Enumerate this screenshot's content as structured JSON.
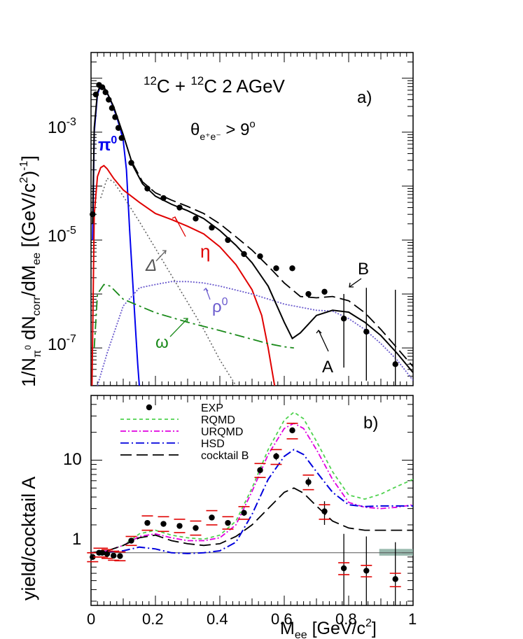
{
  "panel_a": {
    "title_pre": "12",
    "title_mid": "C + ",
    "title_pre2": "12",
    "title_post": "C  2 AGeV",
    "label": "a)",
    "cut_theta": "θ",
    "cut_sub": "e⁺e⁻",
    "cut_rel": " > 9",
    "cut_sup": "o",
    "ylabel_a": "1/N",
    "ylabel_sub1": "π",
    "ylabel_sup1": "0",
    "ylabel_b": " dN",
    "ylabel_sub2": "corr",
    "ylabel_c": "/dM",
    "ylabel_sub3": "ee",
    "ylabel_d": "  [(GeV/c",
    "ylabel_sup2": "2",
    "ylabel_e": ")",
    "ylabel_sup3": "-1",
    "ylabel_f": "]",
    "ytick_base": "10",
    "ytick_exps": [
      "-3",
      "-5",
      "-7"
    ],
    "annotations": {
      "pi0": "π",
      "pi0_sup": "0",
      "eta": "η",
      "delta": "Δ",
      "rho0": "ρ",
      "rho0_sup": "0",
      "omega": "ω",
      "A": "A",
      "B": "B"
    },
    "colors": {
      "pi0": "#0000ee",
      "eta": "#e00000",
      "delta": "#666666",
      "rho0": "#6a5acd",
      "omega": "#1a8a1a",
      "data": "#000000"
    }
  },
  "panel_b": {
    "ylabel": "yield/cocktail A",
    "label": "b)",
    "yticks": [
      "1",
      "10"
    ],
    "xticks": [
      "0",
      "0.2",
      "0.4",
      "0.6",
      "0.8",
      "1"
    ],
    "xlabel_main": "M",
    "xlabel_sub": "ee",
    "xlabel_rest": " [GeV/c",
    "xlabel_sup": "2",
    "xlabel_end": "]",
    "legend": [
      {
        "label": "EXP",
        "color": "#000000"
      },
      {
        "label": "RQMD",
        "color": "#4fd24f"
      },
      {
        "label": "URQMD",
        "color": "#e000e0"
      },
      {
        "label": "HSD",
        "color": "#0000dd"
      },
      {
        "label": "cocktail B",
        "color": "#000000"
      }
    ],
    "colors": {
      "syserr": "#e00000",
      "band": "#7fa89a"
    }
  },
  "chart_data": [
    {
      "type": "line",
      "panel": "a",
      "yscale": "log",
      "xlim": [
        0,
        1
      ],
      "ylim": [
        2e-08,
        0.03
      ],
      "title": "12C + 12C  2 AGeV",
      "ylabel": "1/Nπ0 dNcorr/dMee  [(GeV/c2)-1]",
      "annotation": "θe+e- > 9o",
      "series": [
        {
          "name": "data",
          "x": [
            0.005,
            0.015,
            0.025,
            0.035,
            0.045,
            0.055,
            0.065,
            0.075,
            0.085,
            0.095,
            0.125,
            0.175,
            0.225,
            0.275,
            0.325,
            0.375,
            0.425,
            0.475,
            0.525,
            0.575,
            0.625,
            0.675,
            0.725,
            0.785,
            0.855,
            0.945
          ],
          "y": [
            3e-05,
            0.005,
            0.0075,
            0.0068,
            0.0055,
            0.004,
            0.0028,
            0.0019,
            0.0012,
            0.00078,
            0.00027,
            9e-05,
            6e-05,
            4e-05,
            2.5e-05,
            1.7e-05,
            1e-05,
            5.5e-06,
            5e-06,
            3e-06,
            3e-06,
            1e-06,
            1.1e-06,
            3.5e-07,
            2e-07,
            5e-08
          ],
          "yerr_high": [
            0,
            0,
            0,
            0,
            0,
            0,
            0,
            0,
            0,
            0,
            0,
            0,
            0,
            0,
            0,
            0,
            0,
            0,
            0,
            0,
            0,
            0,
            0,
            1e-06,
            1.3e-06,
            1.2e-06
          ]
        },
        {
          "name": "π0",
          "x": [
            0.005,
            0.01,
            0.02,
            0.03,
            0.04,
            0.05,
            0.06,
            0.07,
            0.08,
            0.09,
            0.1,
            0.11,
            0.12,
            0.13,
            0.14,
            0.145,
            0.15
          ],
          "y": [
            1e-05,
            0.001,
            0.005,
            0.0075,
            0.0068,
            0.0053,
            0.004,
            0.0028,
            0.0019,
            0.0012,
            0.0007,
            0.0002,
            1.5e-05,
            1.5e-06,
            1.5e-07,
            5e-08,
            2e-08
          ]
        },
        {
          "name": "η",
          "x": [
            0.003,
            0.01,
            0.02,
            0.03,
            0.04,
            0.05,
            0.07,
            0.1,
            0.15,
            0.2,
            0.25,
            0.3,
            0.35,
            0.4,
            0.45,
            0.5,
            0.53,
            0.55,
            0.57
          ],
          "y": [
            2e-08,
            3e-05,
            0.00015,
            0.00022,
            0.00024,
            0.00021,
            0.00014,
            8.5e-05,
            5e-05,
            3.1e-05,
            2.4e-05,
            1.8e-05,
            1.3e-05,
            7.5e-06,
            3.5e-06,
            1.2e-06,
            4e-07,
            1e-07,
            2e-08
          ]
        },
        {
          "name": "Δ",
          "x": [
            0.03,
            0.05,
            0.07,
            0.1,
            0.15,
            0.2,
            0.25,
            0.3,
            0.35,
            0.4,
            0.45
          ],
          "y": [
            6e-05,
            0.00014,
            0.00012,
            6.5e-05,
            2.2e-05,
            7e-06,
            2.2e-06,
            7e-07,
            2.2e-07,
            6e-08,
            2e-08
          ]
        },
        {
          "name": "ρ0",
          "x": [
            0.02,
            0.05,
            0.1,
            0.15,
            0.2,
            0.25,
            0.3,
            0.35,
            0.4,
            0.5,
            0.6,
            0.7,
            0.75,
            0.8,
            0.85,
            0.9,
            0.95,
            1.0
          ],
          "y": [
            2e-08,
            8e-08,
            6e-07,
            1.3e-06,
            1.5e-06,
            1.7e-06,
            1.7e-06,
            1.6e-06,
            1.4e-06,
            1e-06,
            6.5e-07,
            5e-07,
            4.8e-07,
            3.5e-07,
            2.2e-07,
            1.2e-07,
            6e-08,
            2.5e-08
          ]
        },
        {
          "name": "ω",
          "x": [
            0.01,
            0.02,
            0.04,
            0.06,
            0.1,
            0.2,
            0.3,
            0.4,
            0.5,
            0.55,
            0.6,
            0.63
          ],
          "y": [
            1e-07,
            1e-06,
            1.5e-06,
            1.4e-06,
            8e-07,
            4.5e-07,
            3e-07,
            2.1e-07,
            1.45e-07,
            1.2e-07,
            1.05e-07,
            1e-07
          ]
        },
        {
          "name": "A",
          "x": [
            0.005,
            0.01,
            0.02,
            0.03,
            0.04,
            0.05,
            0.07,
            0.1,
            0.13,
            0.16,
            0.2,
            0.25,
            0.3,
            0.35,
            0.4,
            0.45,
            0.5,
            0.55,
            0.6,
            0.625,
            0.65,
            0.7,
            0.75,
            0.8,
            0.85,
            0.9,
            0.95,
            1.0
          ],
          "y": [
            2e-05,
            0.0012,
            0.0055,
            0.0075,
            0.0069,
            0.0054,
            0.003,
            0.0009,
            0.00024,
            0.00011,
            6.5e-05,
            4.6e-05,
            3.5e-05,
            2.5e-05,
            1.5e-05,
            8e-06,
            3.8e-06,
            1.4e-06,
            3e-07,
            1.5e-07,
            1.9e-07,
            4e-07,
            5e-07,
            4.6e-07,
            3e-07,
            1.7e-07,
            8e-08,
            3.5e-08
          ]
        },
        {
          "name": "B",
          "x": [
            0.13,
            0.16,
            0.2,
            0.25,
            0.3,
            0.35,
            0.4,
            0.45,
            0.5,
            0.55,
            0.6,
            0.65,
            0.7,
            0.75,
            0.8,
            0.85,
            0.9,
            0.95,
            1.0
          ],
          "y": [
            0.00026,
            0.00012,
            7.5e-05,
            5.5e-05,
            4.2e-05,
            3.1e-05,
            2e-05,
            1.15e-05,
            6.5e-06,
            3.3e-06,
            1.6e-06,
            9e-07,
            8.5e-07,
            9e-07,
            7.5e-07,
            4.5e-07,
            2.2e-07,
            1e-07,
            4.5e-08
          ]
        }
      ]
    },
    {
      "type": "line",
      "panel": "b",
      "yscale": "log",
      "xlim": [
        0,
        1
      ],
      "ylim": [
        0.27,
        50
      ],
      "ylabel": "yield/cocktail A",
      "xlabel": "Mee [GeV/c2]",
      "series": [
        {
          "name": "EXP",
          "x": [
            0.005,
            0.025,
            0.035,
            0.05,
            0.07,
            0.09,
            0.125,
            0.175,
            0.225,
            0.275,
            0.325,
            0.375,
            0.425,
            0.475,
            0.525,
            0.575,
            0.625,
            0.675,
            0.725,
            0.785,
            0.855,
            0.945
          ],
          "y": [
            0.9,
            1.0,
            1.0,
            0.97,
            0.93,
            0.92,
            1.35,
            2.1,
            2.05,
            1.95,
            1.85,
            2.4,
            2.1,
            2.7,
            7.8,
            11,
            21,
            5.8,
            2.8,
            0.68,
            0.64,
            0.52
          ],
          "sys_low": [
            0.8,
            0.9,
            0.9,
            0.87,
            0.83,
            0.82,
            1.2,
            1.75,
            1.7,
            1.65,
            1.55,
            2.0,
            1.8,
            2.3,
            6.5,
            9,
            17,
            4.8,
            2.3,
            0.58,
            0.55,
            0.43
          ],
          "sys_high": [
            1.0,
            1.12,
            1.12,
            1.08,
            1.04,
            1.02,
            1.5,
            2.5,
            2.45,
            2.3,
            2.2,
            2.85,
            2.45,
            3.15,
            9.2,
            13,
            25,
            6.9,
            3.3,
            0.78,
            0.73,
            0.6
          ],
          "stat_low": [
            0.86,
            0.96,
            0.96,
            0.94,
            0.9,
            0.9,
            1.3,
            2.0,
            1.95,
            1.85,
            1.76,
            2.3,
            2.0,
            2.5,
            7.2,
            10,
            19.5,
            5.2,
            2.0,
            0.27,
            0.27,
            0.27
          ],
          "stat_high": [
            0.94,
            1.04,
            1.04,
            1.0,
            0.96,
            0.95,
            1.4,
            2.2,
            2.15,
            2.05,
            1.94,
            2.5,
            2.2,
            2.9,
            8.4,
            12,
            22.5,
            6.5,
            3.6,
            1.6,
            1.5,
            1.3
          ]
        },
        {
          "name": "RQMD",
          "x": [
            0.0,
            0.05,
            0.1,
            0.15,
            0.2,
            0.25,
            0.3,
            0.35,
            0.4,
            0.45,
            0.5,
            0.55,
            0.6,
            0.63,
            0.66,
            0.7,
            0.75,
            0.8,
            0.85,
            0.9,
            0.95,
            1.0
          ],
          "y": [
            1.0,
            1.05,
            1.2,
            1.6,
            1.75,
            1.55,
            1.45,
            1.4,
            1.55,
            2.2,
            5,
            13,
            27,
            33,
            28,
            16,
            7.5,
            4.2,
            3.8,
            4.3,
            5.2,
            6.2
          ]
        },
        {
          "name": "URQMD",
          "x": [
            0.0,
            0.05,
            0.1,
            0.15,
            0.2,
            0.25,
            0.3,
            0.35,
            0.4,
            0.45,
            0.5,
            0.55,
            0.6,
            0.63,
            0.66,
            0.7,
            0.75,
            0.8,
            0.85,
            0.9,
            0.95,
            1.0
          ],
          "y": [
            1.0,
            1.05,
            1.2,
            1.5,
            1.6,
            1.45,
            1.35,
            1.35,
            1.45,
            2.0,
            4.6,
            11.5,
            22,
            25,
            22,
            13,
            6.2,
            3.5,
            3.1,
            3.0,
            3.1,
            3.3
          ]
        },
        {
          "name": "HSD",
          "x": [
            0.0,
            0.05,
            0.1,
            0.15,
            0.2,
            0.25,
            0.3,
            0.35,
            0.4,
            0.45,
            0.5,
            0.55,
            0.6,
            0.63,
            0.66,
            0.7,
            0.75,
            0.8,
            0.85,
            0.9,
            0.95,
            1.0
          ],
          "y": [
            1.0,
            1.02,
            1.05,
            1.15,
            1.1,
            1.0,
            0.98,
            1.0,
            1.05,
            1.3,
            2.6,
            6.2,
            11,
            13,
            11.5,
            7.5,
            4.5,
            3.3,
            3.15,
            3.2,
            3.2,
            3.2
          ]
        },
        {
          "name": "cocktail B",
          "x": [
            0.0,
            0.05,
            0.1,
            0.15,
            0.2,
            0.25,
            0.3,
            0.35,
            0.4,
            0.45,
            0.5,
            0.55,
            0.6,
            0.63,
            0.66,
            0.7,
            0.75,
            0.8,
            0.85,
            0.9,
            0.95,
            1.0
          ],
          "y": [
            1.0,
            1.05,
            1.2,
            1.45,
            1.55,
            1.35,
            1.25,
            1.2,
            1.25,
            1.5,
            2.0,
            3.0,
            4.5,
            5.0,
            4.4,
            3.2,
            2.2,
            1.85,
            1.75,
            1.75,
            1.75,
            1.75
          ]
        }
      ]
    }
  ]
}
